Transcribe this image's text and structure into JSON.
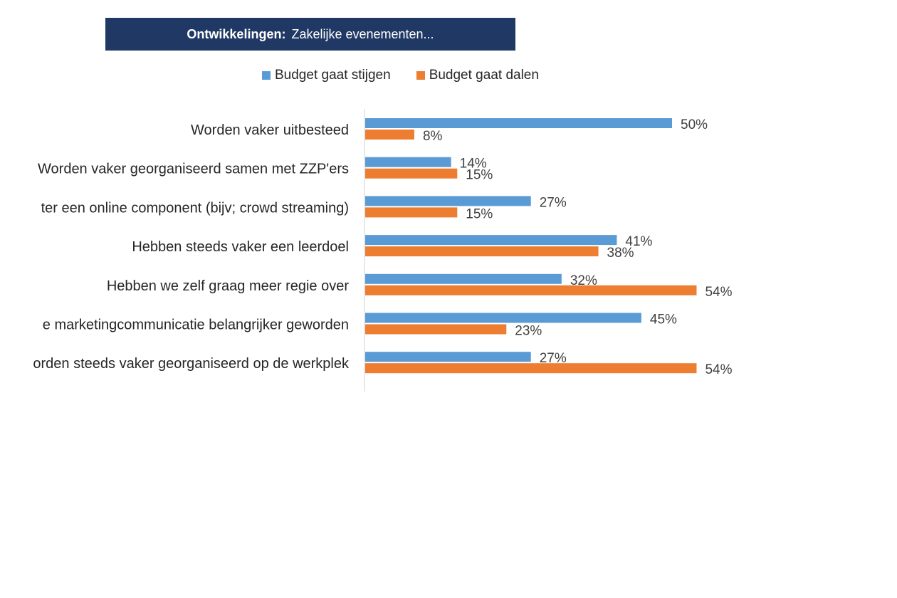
{
  "title": {
    "bold": "Ontwikkelingen:",
    "rest": "Zakelijke evenementen..."
  },
  "colors": {
    "series1": "#5B9BD5",
    "series2": "#ED7D31",
    "title_bg": "#203864",
    "axis": "#D9D9D9",
    "text": "#262626"
  },
  "chart_data": {
    "type": "bar",
    "orientation": "horizontal",
    "title": "Ontwikkelingen: Zakelijke evenementen...",
    "categories": [
      "Worden vaker uitbesteed",
      "Worden vaker georganiseerd samen met ZZP'ers",
      "ter een online component (bijv; crowd streaming)",
      "Hebben steeds vaker een leerdoel",
      "Hebben we zelf graag meer regie over",
      "e marketingcommunicatie belangrijker geworden",
      "orden steeds vaker georganiseerd op de werkplek"
    ],
    "series": [
      {
        "name": "Budget gaat stijgen",
        "color": "#5B9BD5",
        "values": [
          50,
          14,
          27,
          41,
          32,
          45,
          27
        ]
      },
      {
        "name": "Budget gaat dalen",
        "color": "#ED7D31",
        "values": [
          8,
          15,
          15,
          38,
          54,
          23,
          54
        ]
      }
    ],
    "value_suffix": "%",
    "xlim": [
      0,
      60
    ],
    "grid": false,
    "legend": "top"
  }
}
